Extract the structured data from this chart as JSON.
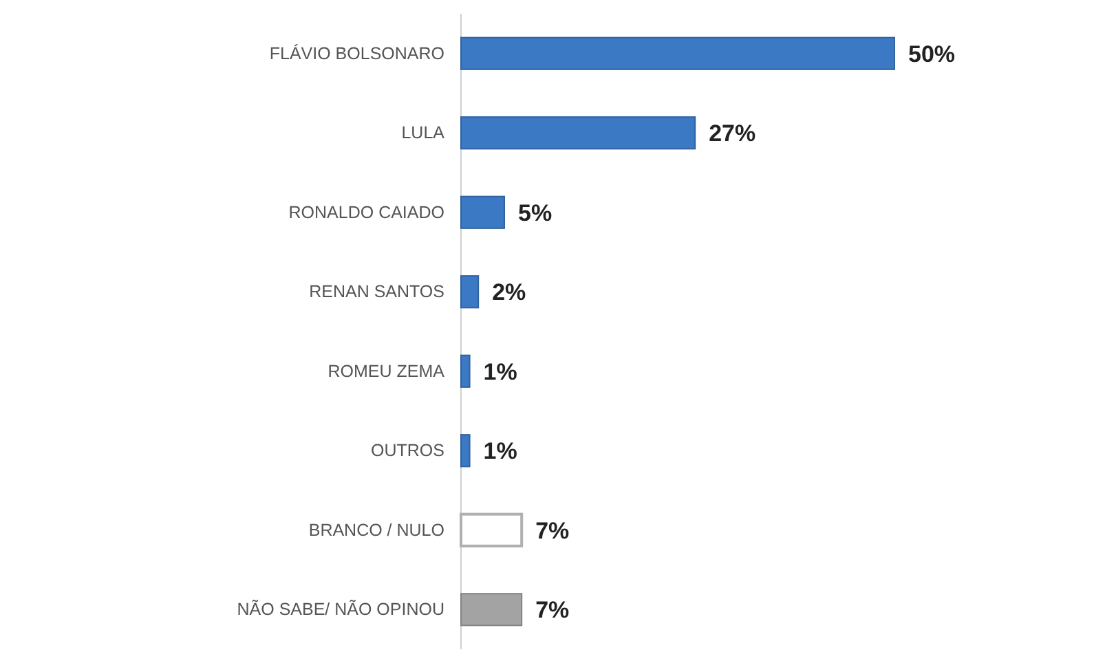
{
  "chart_data": {
    "type": "bar",
    "orientation": "horizontal",
    "data_labels": true,
    "categories": [
      "FLÁVIO BOLSONARO",
      "LULA",
      "RONALDO CAIADO",
      "RENAN SANTOS",
      "ROMEU ZEMA",
      "OUTROS",
      "BRANCO / NULO",
      "NÃO SABE/ NÃO OPINOU"
    ],
    "values": [
      50,
      27,
      5,
      2,
      1,
      1,
      7,
      7
    ],
    "colors": [
      "#3b79c4",
      "#3b79c4",
      "#3b79c4",
      "#3b79c4",
      "#3b79c4",
      "#3b79c4",
      "#ffffff",
      "#a3a3a3"
    ],
    "value_labels": [
      "50%",
      "27%",
      "5%",
      "2%",
      "1%",
      "1%",
      "7%",
      "7%"
    ]
  }
}
